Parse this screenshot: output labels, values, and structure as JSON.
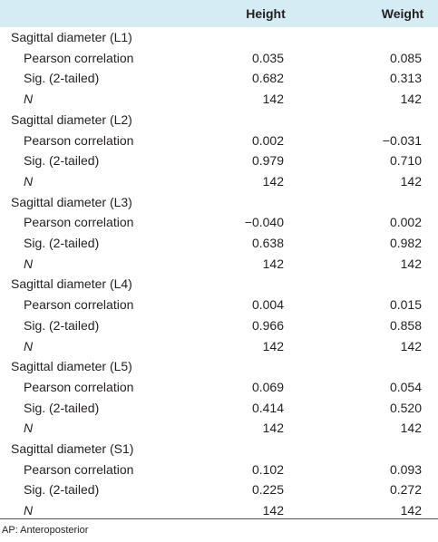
{
  "table": {
    "columns": [
      "Height",
      "Weight"
    ],
    "groups": [
      {
        "label": "Sagittal diameter (L1)",
        "rows": [
          [
            "Pearson correlation",
            "0.035",
            "0.085"
          ],
          [
            "Sig. (2-tailed)",
            "0.682",
            "0.313"
          ],
          [
            "N",
            "142",
            "142"
          ]
        ]
      },
      {
        "label": "Sagittal diameter (L2)",
        "rows": [
          [
            "Pearson correlation",
            "0.002",
            "−0.031"
          ],
          [
            "Sig. (2-tailed)",
            "0.979",
            "0.710"
          ],
          [
            "N",
            "142",
            "142"
          ]
        ]
      },
      {
        "label": "Sagittal diameter (L3)",
        "rows": [
          [
            "Pearson correlation",
            "−0.040",
            "0.002"
          ],
          [
            "Sig. (2-tailed)",
            "0.638",
            "0.982"
          ],
          [
            "N",
            "142",
            "142"
          ]
        ]
      },
      {
        "label": "Sagittal diameter (L4)",
        "rows": [
          [
            "Pearson correlation",
            "0.004",
            "0.015"
          ],
          [
            "Sig. (2-tailed)",
            "0.966",
            "0.858"
          ],
          [
            "N",
            "142",
            "142"
          ]
        ]
      },
      {
        "label": "Sagittal diameter (L5)",
        "rows": [
          [
            "Pearson correlation",
            "0.069",
            "0.054"
          ],
          [
            "Sig. (2-tailed)",
            "0.414",
            "0.520"
          ],
          [
            "N",
            "142",
            "142"
          ]
        ]
      },
      {
        "label": "Sagittal diameter (S1)",
        "rows": [
          [
            "Pearson correlation",
            "0.102",
            "0.093"
          ],
          [
            "Sig. (2-tailed)",
            "0.225",
            "0.272"
          ],
          [
            "N",
            "142",
            "142"
          ]
        ]
      }
    ],
    "footnote": "AP: Anteroposterior"
  }
}
